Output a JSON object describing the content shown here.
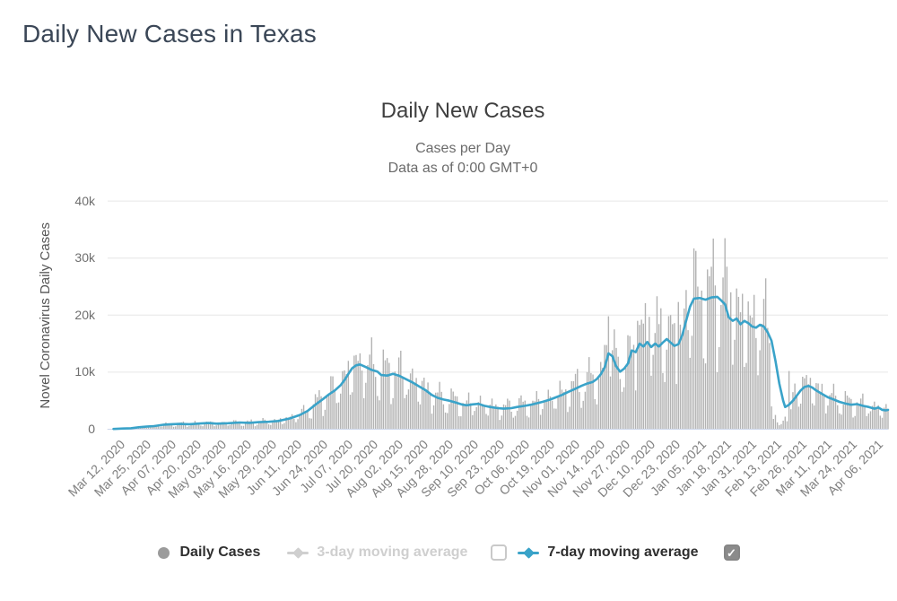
{
  "page": {
    "title": "Daily New Cases in Texas"
  },
  "chart": {
    "title": "Daily New Cases",
    "subtitle_line1": "Cases per Day",
    "subtitle_line2": "Data as of 0:00 GMT+0",
    "y_axis": {
      "title": "Novel Coronavirus Daily Cases",
      "tick_labels": [
        "0",
        "10k",
        "20k",
        "30k",
        "40k"
      ]
    },
    "x_axis": {
      "tick_labels": [
        "Mar 12, 2020",
        "Mar 25, 2020",
        "Apr 07, 2020",
        "Apr 20, 2020",
        "May 03, 2020",
        "May 16, 2020",
        "May 29, 2020",
        "Jun 11, 2020",
        "Jun 24, 2020",
        "Jul 07, 2020",
        "Jul 20, 2020",
        "Aug 02, 2020",
        "Aug 15, 2020",
        "Aug 28, 2020",
        "Sep 10, 2020",
        "Sep 23, 2020",
        "Oct 06, 2020",
        "Oct 19, 2020",
        "Nov 01, 2020",
        "Nov 14, 2020",
        "Nov 27, 2020",
        "Dec 10, 2020",
        "Dec 23, 2020",
        "Jan 05, 2021",
        "Jan 18, 2021",
        "Jan 31, 2021",
        "Feb 13, 2021",
        "Feb 26, 2021",
        "Mar 11, 2021",
        "Mar 24, 2021",
        "Apr 06, 2021"
      ]
    },
    "legend": [
      {
        "label": "Daily Cases",
        "marker": "circle",
        "color": "#9b9b9b",
        "text_color": "#2f2f2f",
        "enabled": true
      },
      {
        "label": "3-day moving average",
        "marker": "line-diamond",
        "color": "#cfcfcf",
        "text_color": "#cfcfcf",
        "enabled": false,
        "checkbox": "unchecked"
      },
      {
        "label": "7-day moving average",
        "marker": "line-diamond",
        "color": "#3aa3c9",
        "text_color": "#2f2f2f",
        "enabled": true,
        "checkbox": "checked",
        "checkmark": "✓"
      }
    ],
    "colors": {
      "bar": "#b3b3b3",
      "ma7_line": "#3aa3c9",
      "grid": "#e6e6e6",
      "axis_line": "#ccd6eb"
    }
  },
  "chart_data": {
    "type": "bar",
    "title": "Daily New Cases",
    "xlabel": "",
    "ylabel": "Novel Coronavirus Daily Cases",
    "ylim": [
      0,
      40000
    ],
    "y_ticks": [
      0,
      10000,
      20000,
      30000,
      40000
    ],
    "grid": "horizontal",
    "legend_position": "bottom",
    "start_day_label": "Mar 09, 2020",
    "days_total": 403,
    "first_tick_day_offset": 3,
    "tick_interval_days": 13,
    "series": [
      {
        "name": "Daily Cases",
        "type": "bar",
        "color": "#b3b3b3",
        "generator": {
          "weekday_factors": [
            0.62,
            1.02,
            1.22,
            1.3,
            1.25,
            1.05,
            0.55
          ],
          "wobble": [
            0.15,
            2.137,
            0.1,
            0.713
          ],
          "overrides": {
            "127": 12900,
            "130": 13300,
            "258": 19800,
            "261": 17500,
            "273": 19000,
            "279": 19700,
            "285": 21200,
            "290": 20000,
            "294": 22300,
            "302": 31700,
            "304": 25000,
            "306": 24300,
            "309": 28000,
            "310": 26800,
            "313": 25200,
            "317": 26600,
            "321": 24000,
            "325": 23200,
            "330": 22400,
            "342": 4000,
            "343": 1800,
            "344": 2500,
            "345": 1200,
            "346": 700,
            "347": 900,
            "348": 1500,
            "349": 2200,
            "350": 1400,
            "351": 10200,
            "352": 3500,
            "353": 6500,
            "358": 9200
          }
        }
      },
      {
        "name": "3-day moving average",
        "type": "line",
        "color": "#cfcfcf",
        "visible": false,
        "points_day_value": []
      },
      {
        "name": "7-day moving average",
        "type": "line",
        "color": "#3aa3c9",
        "visible": true,
        "points_day_value": [
          [
            3,
            50
          ],
          [
            8,
            120
          ],
          [
            12,
            180
          ],
          [
            16,
            350
          ],
          [
            20,
            450
          ],
          [
            24,
            550
          ],
          [
            29,
            800
          ],
          [
            33,
            880
          ],
          [
            37,
            920
          ],
          [
            42,
            880
          ],
          [
            48,
            1000
          ],
          [
            52,
            1080
          ],
          [
            56,
            980
          ],
          [
            62,
            1050
          ],
          [
            68,
            1180
          ],
          [
            73,
            1120
          ],
          [
            78,
            1250
          ],
          [
            83,
            1300
          ],
          [
            88,
            1450
          ],
          [
            94,
            1900
          ],
          [
            99,
            2500
          ],
          [
            103,
            3200
          ],
          [
            107,
            4300
          ],
          [
            111,
            5300
          ],
          [
            114,
            6100
          ],
          [
            117,
            6800
          ],
          [
            120,
            7700
          ],
          [
            122,
            8600
          ],
          [
            124,
            9700
          ],
          [
            126,
            10700
          ],
          [
            128,
            11200
          ],
          [
            130,
            11350
          ],
          [
            133,
            10900
          ],
          [
            136,
            10400
          ],
          [
            139,
            10100
          ],
          [
            141,
            9500
          ],
          [
            144,
            9400
          ],
          [
            147,
            9700
          ],
          [
            150,
            9400
          ],
          [
            153,
            8900
          ],
          [
            157,
            8200
          ],
          [
            160,
            7600
          ],
          [
            164,
            6800
          ],
          [
            167,
            6000
          ],
          [
            170,
            5500
          ],
          [
            173,
            5200
          ],
          [
            176,
            5000
          ],
          [
            180,
            4600
          ],
          [
            183,
            4300
          ],
          [
            185,
            4200
          ],
          [
            188,
            4350
          ],
          [
            191,
            4450
          ],
          [
            194,
            4100
          ],
          [
            197,
            3900
          ],
          [
            201,
            3700
          ],
          [
            204,
            3600
          ],
          [
            208,
            3700
          ],
          [
            211,
            3900
          ],
          [
            215,
            4100
          ],
          [
            218,
            4300
          ],
          [
            221,
            4550
          ],
          [
            224,
            4800
          ],
          [
            228,
            5200
          ],
          [
            231,
            5600
          ],
          [
            234,
            6000
          ],
          [
            237,
            6500
          ],
          [
            241,
            7100
          ],
          [
            244,
            7600
          ],
          [
            247,
            8000
          ],
          [
            250,
            8300
          ],
          [
            252,
            8800
          ],
          [
            254,
            9600
          ],
          [
            256,
            10800
          ],
          [
            258,
            13300
          ],
          [
            260,
            12800
          ],
          [
            262,
            11000
          ],
          [
            264,
            10100
          ],
          [
            266,
            10600
          ],
          [
            268,
            11500
          ],
          [
            270,
            13800
          ],
          [
            272,
            13500
          ],
          [
            274,
            15000
          ],
          [
            276,
            14500
          ],
          [
            278,
            15300
          ],
          [
            280,
            14400
          ],
          [
            282,
            15000
          ],
          [
            284,
            14500
          ],
          [
            286,
            15200
          ],
          [
            288,
            15800
          ],
          [
            290,
            15200
          ],
          [
            292,
            14600
          ],
          [
            294,
            14900
          ],
          [
            296,
            16500
          ],
          [
            298,
            19000
          ],
          [
            300,
            21500
          ],
          [
            302,
            22900
          ],
          [
            305,
            23000
          ],
          [
            308,
            22700
          ],
          [
            311,
            23100
          ],
          [
            314,
            23200
          ],
          [
            316,
            22600
          ],
          [
            318,
            21900
          ],
          [
            320,
            19600
          ],
          [
            322,
            19000
          ],
          [
            324,
            19400
          ],
          [
            326,
            18400
          ],
          [
            328,
            19000
          ],
          [
            330,
            18600
          ],
          [
            332,
            18000
          ],
          [
            334,
            17800
          ],
          [
            336,
            18300
          ],
          [
            338,
            18000
          ],
          [
            340,
            17000
          ],
          [
            342,
            15500
          ],
          [
            344,
            12000
          ],
          [
            346,
            8000
          ],
          [
            348,
            5000
          ],
          [
            349,
            3900
          ],
          [
            351,
            4300
          ],
          [
            353,
            5000
          ],
          [
            355,
            5900
          ],
          [
            357,
            6800
          ],
          [
            359,
            7400
          ],
          [
            361,
            7600
          ],
          [
            363,
            7300
          ],
          [
            365,
            6800
          ],
          [
            368,
            6200
          ],
          [
            371,
            5600
          ],
          [
            374,
            5200
          ],
          [
            377,
            4800
          ],
          [
            380,
            4500
          ],
          [
            383,
            4300
          ],
          [
            386,
            4400
          ],
          [
            389,
            4100
          ],
          [
            392,
            3900
          ],
          [
            395,
            3600
          ],
          [
            397,
            3800
          ],
          [
            399,
            3400
          ],
          [
            401,
            3300
          ],
          [
            402,
            3400
          ]
        ]
      }
    ]
  }
}
